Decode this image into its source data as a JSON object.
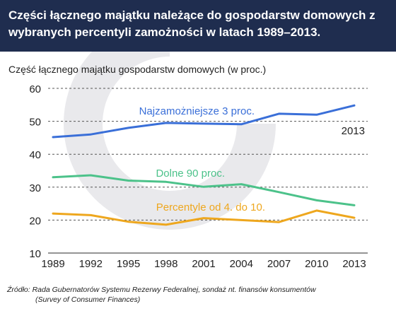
{
  "header": {
    "title": "Części łącznego majątku należące do gospodarstw domowych z wybranych percentyli zamożności w latach 1989–2013."
  },
  "chart_data": {
    "type": "line",
    "ylabel": "Część łącznego majątku gospodarstw domowych (w proc.)",
    "xlabel": "",
    "x": [
      1989,
      1992,
      1995,
      1998,
      2001,
      2004,
      2007,
      2010,
      2013
    ],
    "x_tick_labels": [
      "1989",
      "1992",
      "1995",
      "1998",
      "2001",
      "2004",
      "2007",
      "2010",
      "2013"
    ],
    "y_ticks": [
      10,
      20,
      30,
      40,
      50,
      60
    ],
    "ylim": [
      10,
      60
    ],
    "xlim": [
      1989,
      2013
    ],
    "grid": "horizontal dashed",
    "series": [
      {
        "name": "Najzamożniejsze 3 proc.",
        "color": "#3a6fd8",
        "values": [
          45.2,
          46.0,
          48.0,
          49.5,
          49.3,
          49.1,
          52.3,
          52.0,
          54.8
        ]
      },
      {
        "name": "Dolne 90 proc.",
        "color": "#4cc28a",
        "values": [
          33.0,
          33.6,
          32.0,
          31.6,
          30.1,
          30.9,
          28.5,
          26.0,
          24.5
        ]
      },
      {
        "name": "Percentyle od 4. do 10.",
        "color": "#eea71e",
        "values": [
          22.0,
          21.5,
          19.5,
          18.6,
          20.6,
          20.0,
          19.4,
          22.9,
          20.7
        ]
      }
    ],
    "annotations": [
      {
        "text": "2013"
      }
    ]
  },
  "source": {
    "line1": "Źródło: Rada Gubernatorów Systemu Rezerwy Federalnej, sondaż nt. finansów konsumentów",
    "line2": "(Survey of Consumer Finances)"
  }
}
